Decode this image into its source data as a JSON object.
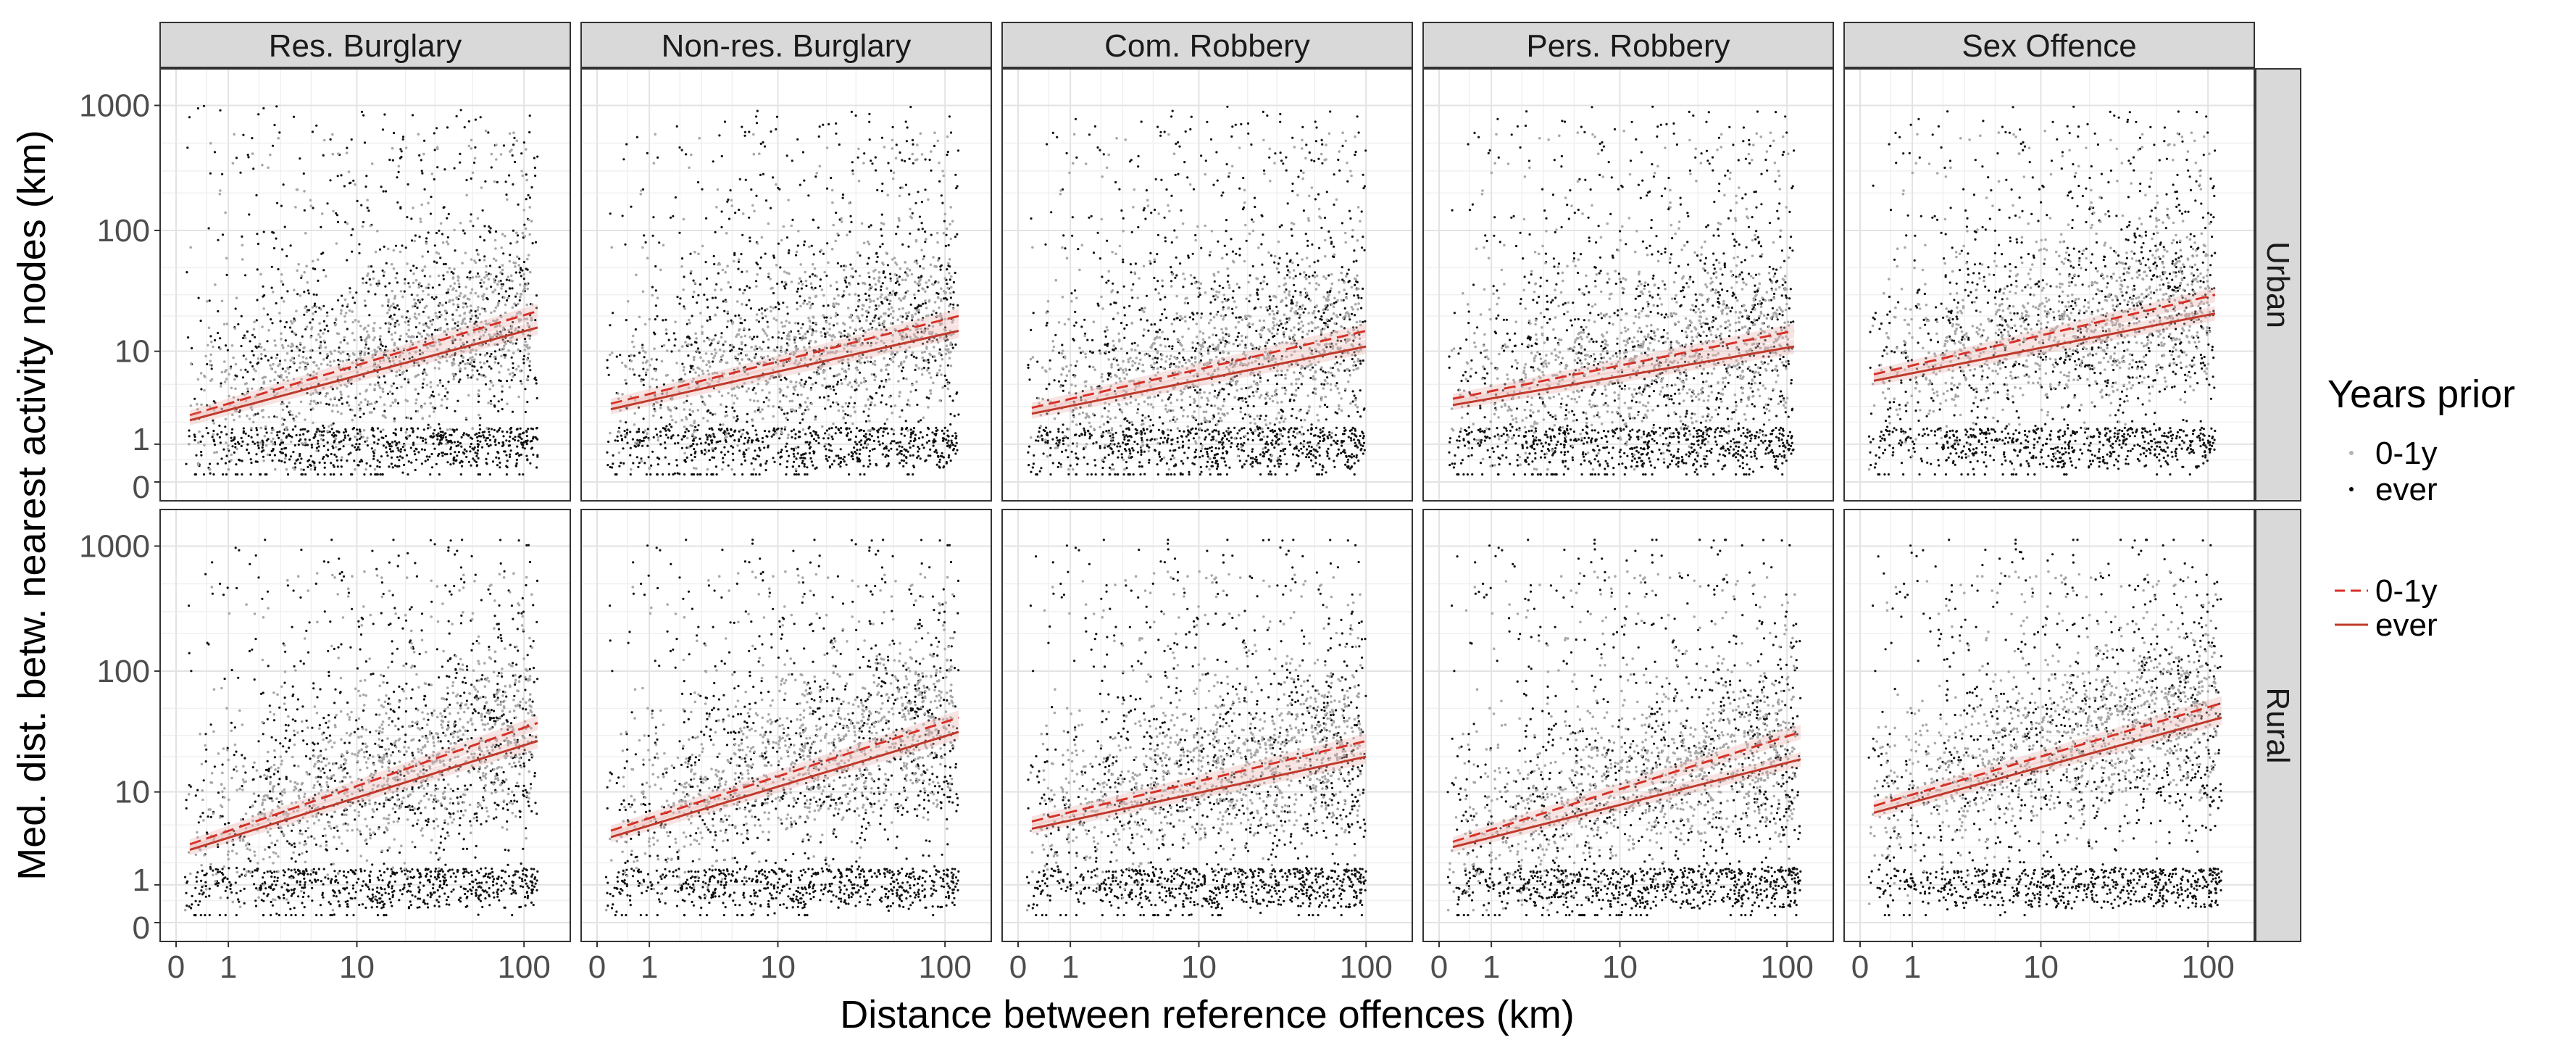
{
  "chart_data": {
    "type": "scatter",
    "subtype": "faceted scatter with linear fit lines, pseudo-log axes",
    "facet_columns": [
      "Res. Burglary",
      "Non-res. Burglary",
      "Com. Robbery",
      "Pers. Robbery",
      "Sex Offence"
    ],
    "facet_rows": [
      "Urban",
      "Rural"
    ],
    "xlabel": "Distance between reference offences (km)",
    "ylabel": "Med. dist. betw. nearest activity nodes (km)",
    "x_ticks": [
      "0",
      "1",
      "10",
      "100"
    ],
    "x_tick_values": [
      0,
      1,
      10,
      100
    ],
    "y_ticks": [
      "0",
      "1",
      "10",
      "100",
      "1000"
    ],
    "y_tick_values": [
      0,
      1,
      10,
      100,
      1000
    ],
    "xlim": [
      0,
      150
    ],
    "ylim": [
      0,
      1500
    ],
    "scale": "pseudo-log",
    "grid": true,
    "legend": {
      "title": "Years prior",
      "position": "right",
      "points": [
        {
          "label": "0-1y",
          "color": "#b3b3b3"
        },
        {
          "label": "ever",
          "color": "#000000"
        }
      ],
      "lines": [
        {
          "label": "0-1y",
          "color": "#d73027",
          "linetype": "dashed"
        },
        {
          "label": "ever",
          "color": "#c0392b",
          "linetype": "solid"
        }
      ]
    },
    "panels": [
      {
        "row": "Urban",
        "col": "Res. Burglary",
        "fit_lines": [
          {
            "series": "0-1y",
            "x": [
              0.2,
              120
            ],
            "y": [
              2.4,
              22
            ]
          },
          {
            "series": "ever",
            "x": [
              0.2,
              120
            ],
            "y": [
              2.1,
              16
            ]
          }
        ]
      },
      {
        "row": "Urban",
        "col": "Non-res. Burglary",
        "fit_lines": [
          {
            "series": "0-1y",
            "x": [
              0.2,
              120
            ],
            "y": [
              3.2,
              20
            ]
          },
          {
            "series": "ever",
            "x": [
              0.2,
              120
            ],
            "y": [
              2.8,
              15
            ]
          }
        ]
      },
      {
        "row": "Urban",
        "col": "Com. Robbery",
        "fit_lines": [
          {
            "series": "0-1y",
            "x": [
              0.2,
              100
            ],
            "y": [
              2.9,
              15
            ]
          },
          {
            "series": "ever",
            "x": [
              0.2,
              100
            ],
            "y": [
              2.5,
              11
            ]
          }
        ]
      },
      {
        "row": "Urban",
        "col": "Pers. Robbery",
        "fit_lines": [
          {
            "series": "0-1y",
            "x": [
              0.2,
              110
            ],
            "y": [
              3.6,
              15
            ]
          },
          {
            "series": "ever",
            "x": [
              0.2,
              110
            ],
            "y": [
              3.1,
              11
            ]
          }
        ]
      },
      {
        "row": "Urban",
        "col": "Sex Offence",
        "fit_lines": [
          {
            "series": "0-1y",
            "x": [
              0.2,
              110
            ],
            "y": [
              6.2,
              30
            ]
          },
          {
            "series": "ever",
            "x": [
              0.2,
              110
            ],
            "y": [
              5.4,
              21
            ]
          }
        ]
      },
      {
        "row": "Rural",
        "col": "Res. Burglary",
        "fit_lines": [
          {
            "series": "0-1y",
            "x": [
              0.2,
              120
            ],
            "y": [
              3.2,
              38
            ]
          },
          {
            "series": "ever",
            "x": [
              0.2,
              120
            ],
            "y": [
              2.8,
              27
            ]
          }
        ]
      },
      {
        "row": "Rural",
        "col": "Non-res. Burglary",
        "fit_lines": [
          {
            "series": "0-1y",
            "x": [
              0.2,
              120
            ],
            "y": [
              4.4,
              42
            ]
          },
          {
            "series": "ever",
            "x": [
              0.2,
              120
            ],
            "y": [
              3.8,
              32
            ]
          }
        ]
      },
      {
        "row": "Rural",
        "col": "Com. Robbery",
        "fit_lines": [
          {
            "series": "0-1y",
            "x": [
              0.2,
              100
            ],
            "y": [
              5.4,
              27
            ]
          },
          {
            "series": "ever",
            "x": [
              0.2,
              100
            ],
            "y": [
              4.6,
              20
            ]
          }
        ]
      },
      {
        "row": "Rural",
        "col": "Pers. Robbery",
        "fit_lines": [
          {
            "series": "0-1y",
            "x": [
              0.2,
              120
            ],
            "y": [
              3.4,
              32
            ]
          },
          {
            "series": "ever",
            "x": [
              0.2,
              120
            ],
            "y": [
              3.0,
              19
            ]
          }
        ]
      },
      {
        "row": "Rural",
        "col": "Sex Offence",
        "fit_lines": [
          {
            "series": "0-1y",
            "x": [
              0.2,
              120
            ],
            "y": [
              7.5,
              55
            ]
          },
          {
            "series": "ever",
            "x": [
              0.2,
              120
            ],
            "y": [
              6.5,
              42
            ]
          }
        ]
      }
    ]
  }
}
